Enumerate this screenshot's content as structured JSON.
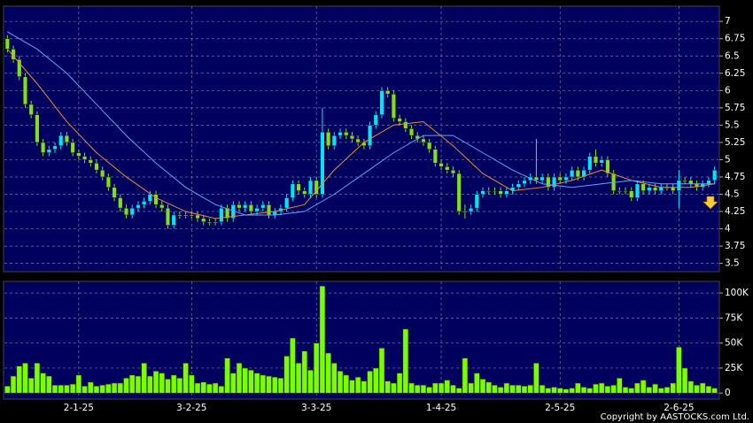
{
  "chart_data": [
    {
      "type": "candlestick",
      "up_color": "#00e5ff",
      "down_color": "#7ee01e",
      "xlim": [
        -0.5,
        119.5
      ],
      "ylim": [
        3.38,
        7.22
      ],
      "yticks": [
        3.5,
        3.75,
        4,
        4.25,
        4.5,
        4.75,
        5,
        5.25,
        5.5,
        5.75,
        6,
        6.25,
        6.5,
        6.75,
        7
      ],
      "grid": true,
      "ohlc": [
        [
          6.75,
          6.8,
          6.55,
          6.6
        ],
        [
          6.6,
          6.65,
          6.4,
          6.45
        ],
        [
          6.45,
          6.5,
          6.15,
          6.2
        ],
        [
          6.2,
          6.25,
          5.75,
          5.8
        ],
        [
          5.8,
          5.85,
          5.6,
          5.65
        ],
        [
          5.65,
          5.7,
          5.2,
          5.25
        ],
        [
          5.25,
          5.3,
          5.05,
          5.1
        ],
        [
          5.1,
          5.2,
          5.05,
          5.15
        ],
        [
          5.15,
          5.25,
          5.1,
          5.2
        ],
        [
          5.2,
          5.4,
          5.15,
          5.35
        ],
        [
          5.35,
          5.4,
          5.2,
          5.25
        ],
        [
          5.25,
          5.3,
          5.05,
          5.1
        ],
        [
          5.1,
          5.15,
          5.0,
          5.05
        ],
        [
          5.05,
          5.1,
          4.95,
          5.0
        ],
        [
          5.0,
          5.05,
          4.9,
          4.95
        ],
        [
          4.95,
          5.0,
          4.8,
          4.85
        ],
        [
          4.85,
          4.9,
          4.7,
          4.75
        ],
        [
          4.75,
          4.8,
          4.55,
          4.6
        ],
        [
          4.6,
          4.65,
          4.4,
          4.45
        ],
        [
          4.45,
          4.5,
          4.25,
          4.3
        ],
        [
          4.3,
          4.35,
          4.15,
          4.2
        ],
        [
          4.2,
          4.35,
          4.15,
          4.3
        ],
        [
          4.3,
          4.4,
          4.25,
          4.35
        ],
        [
          4.35,
          4.45,
          4.3,
          4.4
        ],
        [
          4.4,
          4.55,
          4.35,
          4.5
        ],
        [
          4.5,
          4.55,
          4.3,
          4.35
        ],
        [
          4.35,
          4.4,
          4.25,
          4.3
        ],
        [
          4.3,
          4.35,
          4.0,
          4.05
        ],
        [
          4.05,
          4.25,
          4.0,
          4.2
        ],
        [
          4.2,
          4.25,
          4.15,
          4.2
        ],
        [
          4.2,
          4.25,
          4.15,
          4.2
        ],
        [
          4.2,
          4.25,
          4.15,
          4.2
        ],
        [
          4.2,
          4.25,
          4.1,
          4.15
        ],
        [
          4.15,
          4.2,
          4.05,
          4.1
        ],
        [
          4.1,
          4.15,
          4.05,
          4.1
        ],
        [
          4.1,
          4.15,
          4.05,
          4.1
        ],
        [
          4.1,
          4.35,
          4.05,
          4.3
        ],
        [
          4.3,
          4.35,
          4.1,
          4.15
        ],
        [
          4.15,
          4.4,
          4.1,
          4.35
        ],
        [
          4.35,
          4.4,
          4.25,
          4.3
        ],
        [
          4.3,
          4.4,
          4.25,
          4.35
        ],
        [
          4.35,
          4.4,
          4.2,
          4.25
        ],
        [
          4.25,
          4.35,
          4.2,
          4.3
        ],
        [
          4.3,
          4.4,
          4.25,
          4.35
        ],
        [
          4.35,
          4.4,
          4.15,
          4.2
        ],
        [
          4.2,
          4.3,
          4.15,
          4.25
        ],
        [
          4.25,
          4.35,
          4.2,
          4.3
        ],
        [
          4.3,
          4.5,
          4.25,
          4.45
        ],
        [
          4.45,
          4.7,
          4.4,
          4.65
        ],
        [
          4.65,
          4.7,
          4.5,
          4.55
        ],
        [
          4.55,
          4.6,
          4.45,
          4.5
        ],
        [
          4.5,
          4.75,
          4.45,
          4.7
        ],
        [
          4.7,
          4.75,
          4.45,
          4.5
        ],
        [
          4.5,
          5.75,
          4.45,
          5.4
        ],
        [
          5.4,
          5.45,
          5.15,
          5.2
        ],
        [
          5.2,
          5.4,
          5.15,
          5.35
        ],
        [
          5.35,
          5.45,
          5.3,
          5.4
        ],
        [
          5.4,
          5.45,
          5.3,
          5.35
        ],
        [
          5.35,
          5.4,
          5.25,
          5.3
        ],
        [
          5.3,
          5.35,
          5.2,
          5.25
        ],
        [
          5.25,
          5.3,
          5.15,
          5.2
        ],
        [
          5.2,
          5.55,
          5.15,
          5.5
        ],
        [
          5.5,
          5.7,
          5.45,
          5.65
        ],
        [
          5.65,
          6.05,
          5.6,
          6.0
        ],
        [
          6.0,
          6.05,
          5.9,
          5.95
        ],
        [
          5.95,
          6.0,
          5.55,
          5.6
        ],
        [
          5.6,
          5.65,
          5.5,
          5.55
        ],
        [
          5.55,
          5.6,
          5.4,
          5.45
        ],
        [
          5.45,
          5.5,
          5.3,
          5.35
        ],
        [
          5.35,
          5.4,
          5.25,
          5.3
        ],
        [
          5.3,
          5.35,
          5.2,
          5.25
        ],
        [
          5.25,
          5.3,
          5.1,
          5.15
        ],
        [
          5.15,
          5.2,
          4.9,
          4.95
        ],
        [
          4.95,
          5.0,
          4.85,
          4.9
        ],
        [
          4.9,
          4.95,
          4.8,
          4.85
        ],
        [
          4.85,
          4.9,
          4.75,
          4.8
        ],
        [
          4.8,
          4.85,
          4.2,
          4.25
        ],
        [
          4.25,
          4.35,
          4.15,
          4.25
        ],
        [
          4.25,
          4.35,
          4.2,
          4.3
        ],
        [
          4.3,
          4.55,
          4.25,
          4.5
        ],
        [
          4.5,
          4.6,
          4.45,
          4.55
        ],
        [
          4.55,
          4.6,
          4.5,
          4.55
        ],
        [
          4.55,
          4.6,
          4.5,
          4.55
        ],
        [
          4.55,
          4.6,
          4.45,
          4.5
        ],
        [
          4.5,
          4.6,
          4.45,
          4.55
        ],
        [
          4.55,
          4.65,
          4.5,
          4.6
        ],
        [
          4.6,
          4.7,
          4.55,
          4.65
        ],
        [
          4.65,
          4.75,
          4.6,
          4.7
        ],
        [
          4.7,
          4.8,
          4.65,
          4.75
        ],
        [
          4.75,
          5.3,
          4.65,
          4.7
        ],
        [
          4.7,
          4.8,
          4.65,
          4.75
        ],
        [
          4.75,
          4.8,
          4.55,
          4.6
        ],
        [
          4.6,
          4.8,
          4.55,
          4.75
        ],
        [
          4.75,
          4.8,
          4.65,
          4.7
        ],
        [
          4.7,
          4.8,
          4.65,
          4.75
        ],
        [
          4.75,
          4.9,
          4.7,
          4.85
        ],
        [
          4.85,
          4.9,
          4.7,
          4.75
        ],
        [
          4.75,
          4.9,
          4.7,
          4.85
        ],
        [
          4.85,
          5.1,
          4.8,
          5.05
        ],
        [
          5.05,
          5.15,
          4.9,
          4.95
        ],
        [
          4.95,
          5.05,
          4.9,
          5.0
        ],
        [
          5.0,
          5.05,
          4.75,
          4.8
        ],
        [
          4.8,
          4.85,
          4.5,
          4.55
        ],
        [
          4.55,
          4.6,
          4.5,
          4.55
        ],
        [
          4.55,
          4.6,
          4.5,
          4.55
        ],
        [
          4.55,
          4.6,
          4.4,
          4.45
        ],
        [
          4.45,
          4.7,
          4.4,
          4.65
        ],
        [
          4.65,
          4.7,
          4.5,
          4.55
        ],
        [
          4.55,
          4.65,
          4.5,
          4.6
        ],
        [
          4.6,
          4.65,
          4.5,
          4.55
        ],
        [
          4.55,
          4.65,
          4.5,
          4.6
        ],
        [
          4.6,
          4.65,
          4.55,
          4.6
        ],
        [
          4.6,
          4.65,
          4.5,
          4.55
        ],
        [
          4.55,
          4.85,
          4.3,
          4.7
        ],
        [
          4.7,
          4.75,
          4.65,
          4.7
        ],
        [
          4.7,
          4.75,
          4.6,
          4.65
        ],
        [
          4.65,
          4.7,
          4.55,
          4.6
        ],
        [
          4.6,
          4.7,
          4.55,
          4.65
        ],
        [
          4.65,
          4.75,
          4.6,
          4.7
        ],
        [
          4.7,
          4.9,
          4.65,
          4.85
        ]
      ],
      "series": [
        {
          "color": "#f08a30",
          "x": [
            0,
            5,
            10,
            15,
            20,
            25,
            30,
            35,
            40,
            45,
            50,
            55,
            60,
            65,
            70,
            75,
            80,
            85,
            90,
            95,
            100,
            105,
            110,
            115,
            119
          ],
          "values": [
            6.6,
            6.1,
            5.55,
            5.1,
            4.75,
            4.45,
            4.25,
            4.15,
            4.2,
            4.25,
            4.35,
            4.85,
            5.25,
            5.5,
            5.55,
            5.2,
            4.8,
            4.55,
            4.6,
            4.7,
            4.85,
            4.7,
            4.6,
            4.6,
            4.65
          ]
        },
        {
          "color": "#5aa8ff",
          "x": [
            0,
            5,
            10,
            15,
            20,
            25,
            30,
            35,
            40,
            45,
            50,
            55,
            60,
            65,
            70,
            75,
            80,
            85,
            90,
            95,
            100,
            105,
            110,
            115,
            119
          ],
          "values": [
            6.85,
            6.6,
            6.25,
            5.8,
            5.35,
            4.95,
            4.6,
            4.35,
            4.2,
            4.2,
            4.25,
            4.5,
            4.8,
            5.1,
            5.35,
            5.35,
            5.1,
            4.85,
            4.65,
            4.6,
            4.65,
            4.7,
            4.65,
            4.65,
            4.65
          ]
        }
      ]
    },
    {
      "type": "bar",
      "color": "#7cfc00",
      "xlim": [
        -0.5,
        119.5
      ],
      "ylim": [
        -6000,
        111600
      ],
      "yticks": [
        0,
        {
          "value": 25000,
          "label": "25K"
        },
        {
          "value": 50000,
          "label": "50K"
        },
        {
          "value": 75000,
          "label": "75K"
        },
        {
          "value": 100000,
          "label": "100K"
        }
      ],
      "grid": true,
      "xticks": [
        {
          "value": 12,
          "label": "2-1-25"
        },
        {
          "value": 31,
          "label": "3-2-25"
        },
        {
          "value": 52,
          "label": "3-3-25"
        },
        {
          "value": 73,
          "label": "1-4-25"
        },
        {
          "value": 93,
          "label": "2-5-25"
        },
        {
          "value": 113,
          "label": "2-6-25"
        }
      ],
      "values": [
        7000,
        17000,
        27000,
        30000,
        15000,
        30000,
        20000,
        17000,
        8000,
        8000,
        8000,
        9000,
        18000,
        7000,
        11000,
        7000,
        8000,
        9000,
        10000,
        10000,
        15000,
        18000,
        17000,
        30000,
        17000,
        22000,
        20000,
        14000,
        18000,
        15000,
        30000,
        18000,
        10000,
        11000,
        9000,
        10000,
        7000,
        35000,
        20000,
        30000,
        25000,
        23000,
        20000,
        18000,
        17000,
        16000,
        15000,
        37000,
        55000,
        30000,
        42000,
        23000,
        50000,
        107000,
        40000,
        30000,
        22000,
        18000,
        13000,
        16000,
        12000,
        22000,
        25000,
        45000,
        12000,
        10000,
        20000,
        64000,
        10000,
        8000,
        8000,
        6000,
        10000,
        10000,
        13000,
        8000,
        5000,
        35000,
        10000,
        20000,
        14000,
        11000,
        8000,
        6000,
        10000,
        8000,
        8000,
        7000,
        8000,
        30000,
        8000,
        5000,
        6000,
        5000,
        4000,
        5000,
        10000,
        6000,
        5000,
        9000,
        10000,
        7000,
        8000,
        15000,
        6000,
        5000,
        10000,
        13000,
        6000,
        9000,
        5000,
        6000,
        10000,
        46000,
        25000,
        12000,
        8000,
        10000,
        7000,
        5000
      ]
    }
  ],
  "copyright": "Copyright by AASTOCKS.com Ltd."
}
